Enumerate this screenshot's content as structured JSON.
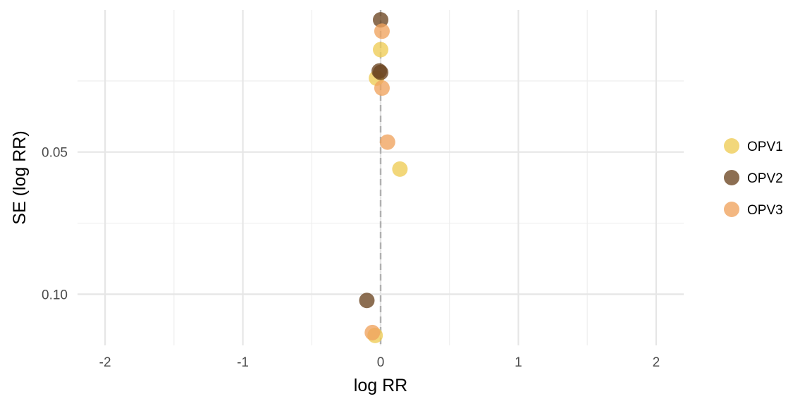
{
  "chart_data": {
    "type": "scatter",
    "title": "",
    "xlabel": "log RR",
    "ylabel": "SE (log RR)",
    "xlim": [
      -2.2,
      2.2
    ],
    "ylim_reversed": [
      0.0,
      0.118
    ],
    "x_ticks": [
      -2,
      -1,
      0,
      1,
      2
    ],
    "x_tick_labels": [
      "-2",
      "-1",
      "0",
      "1",
      "2"
    ],
    "y_ticks": [
      0.05,
      0.1
    ],
    "y_tick_labels": [
      "0.05",
      "0.10"
    ],
    "reference_line_x": 0,
    "grid": true,
    "legend_position": "right",
    "series": [
      {
        "name": "OPV1",
        "color": "#EECC55",
        "points": [
          {
            "x": 0.0,
            "se": 0.014
          },
          {
            "x": -0.03,
            "se": 0.024
          },
          {
            "x": 0.14,
            "se": 0.056
          },
          {
            "x": -0.04,
            "se": 0.1145
          }
        ]
      },
      {
        "name": "OPV2",
        "color": "#6B4521",
        "points": [
          {
            "x": 0.0,
            "se": 0.0035
          },
          {
            "x": 0.0,
            "se": 0.022
          },
          {
            "x": -0.01,
            "se": 0.0215
          },
          {
            "x": -0.1,
            "se": 0.1022
          }
        ]
      },
      {
        "name": "OPV3",
        "color": "#F0A35E",
        "points": [
          {
            "x": 0.01,
            "se": 0.0075
          },
          {
            "x": 0.01,
            "se": 0.0275
          },
          {
            "x": 0.05,
            "se": 0.0465
          },
          {
            "x": -0.06,
            "se": 0.1135
          }
        ]
      }
    ]
  }
}
